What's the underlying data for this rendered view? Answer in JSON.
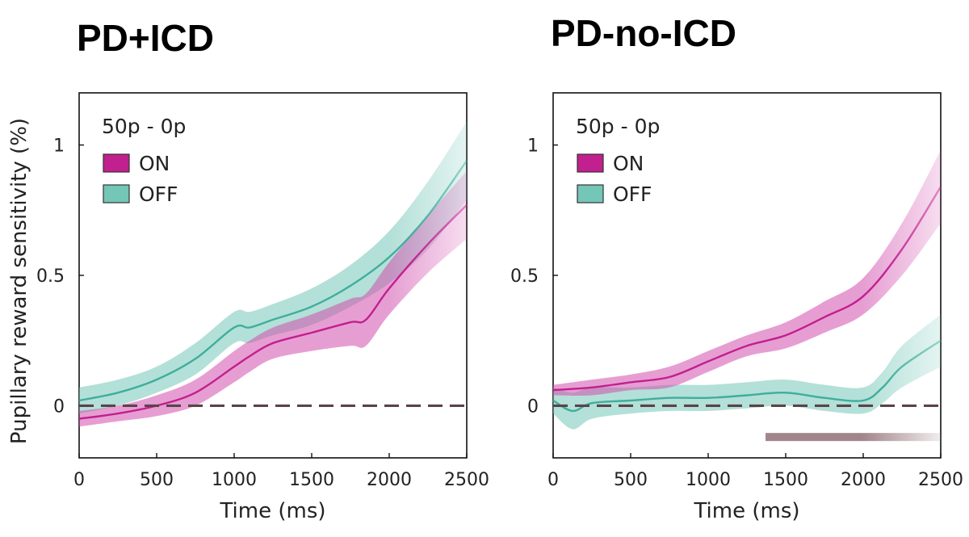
{
  "colors": {
    "on": "#c21f8f",
    "on_band": "#d24fae",
    "off": "#3fae9c",
    "off_band": "#74c6b7",
    "baseline": "#5a4448",
    "sig_bar": "#a0858a"
  },
  "ylabel": "Pupillary reward sensitivity (%)",
  "chart_data": [
    {
      "type": "line",
      "title": "PD+ICD",
      "xlabel": "Time (ms)",
      "ylabel": "Pupillary reward sensitivity (%)",
      "xlim": [
        0,
        2500
      ],
      "ylim": [
        -0.2,
        1.2
      ],
      "xticks": [
        "0",
        "500",
        "1000",
        "1500",
        "2000",
        "2500"
      ],
      "yticks": [
        "0",
        "0.5",
        "1"
      ],
      "legend_title": "50p - 0p",
      "baseline": 0,
      "series": [
        {
          "name": "ON",
          "x": [
            0,
            250,
            500,
            750,
            1000,
            1100,
            1250,
            1500,
            1750,
            1850,
            2000,
            2250,
            2500
          ],
          "mean": [
            -0.05,
            -0.03,
            0.0,
            0.05,
            0.15,
            0.19,
            0.24,
            0.28,
            0.32,
            0.33,
            0.45,
            0.62,
            0.77
          ],
          "sem": [
            0.03,
            0.03,
            0.04,
            0.05,
            0.06,
            0.06,
            0.06,
            0.07,
            0.09,
            0.1,
            0.1,
            0.11,
            0.13
          ]
        },
        {
          "name": "OFF",
          "x": [
            0,
            250,
            500,
            750,
            1000,
            1100,
            1250,
            1500,
            1750,
            2000,
            2250,
            2500
          ],
          "mean": [
            0.02,
            0.05,
            0.1,
            0.18,
            0.3,
            0.3,
            0.33,
            0.38,
            0.46,
            0.57,
            0.73,
            0.94
          ],
          "sem": [
            0.05,
            0.05,
            0.05,
            0.06,
            0.06,
            0.06,
            0.06,
            0.07,
            0.08,
            0.1,
            0.13,
            0.15
          ]
        }
      ]
    },
    {
      "type": "line",
      "title": "PD-no-ICD",
      "xlabel": "Time (ms)",
      "ylabel": "",
      "xlim": [
        0,
        2500
      ],
      "ylim": [
        -0.2,
        1.2
      ],
      "xticks": [
        "0",
        "500",
        "1000",
        "1500",
        "2000",
        "2500"
      ],
      "yticks": [
        "0",
        "0.5",
        "1"
      ],
      "legend_title": "50p - 0p",
      "baseline": 0,
      "significance": {
        "x_start": 1370,
        "x_end": 2500,
        "y": -0.12
      },
      "series": [
        {
          "name": "ON",
          "x": [
            0,
            250,
            500,
            750,
            1000,
            1250,
            1500,
            1750,
            2000,
            2250,
            2500
          ],
          "mean": [
            0.06,
            0.07,
            0.09,
            0.11,
            0.17,
            0.23,
            0.27,
            0.34,
            0.42,
            0.6,
            0.84
          ],
          "sem": [
            0.02,
            0.03,
            0.03,
            0.04,
            0.04,
            0.04,
            0.05,
            0.06,
            0.07,
            0.1,
            0.14
          ]
        },
        {
          "name": "OFF",
          "x": [
            0,
            125,
            250,
            500,
            750,
            1000,
            1250,
            1500,
            1750,
            2000,
            2125,
            2250,
            2500
          ],
          "mean": [
            0.02,
            -0.02,
            0.01,
            0.02,
            0.03,
            0.03,
            0.04,
            0.05,
            0.03,
            0.02,
            0.07,
            0.15,
            0.25
          ],
          "sem": [
            0.05,
            0.07,
            0.06,
            0.05,
            0.05,
            0.05,
            0.05,
            0.05,
            0.05,
            0.05,
            0.06,
            0.08,
            0.1
          ]
        }
      ]
    }
  ]
}
